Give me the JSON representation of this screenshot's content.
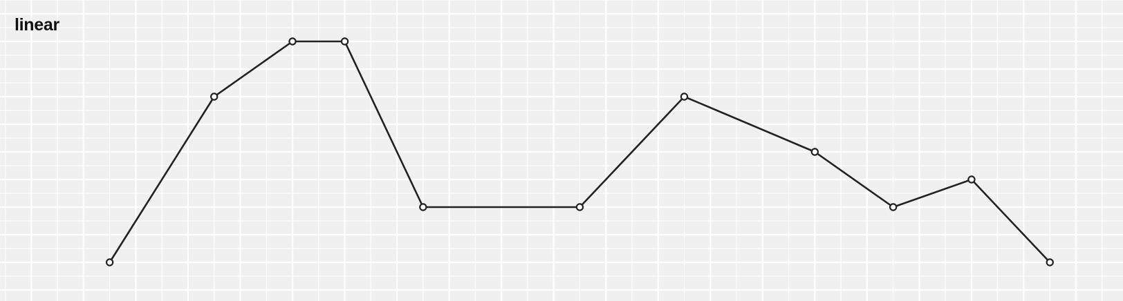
{
  "chart_data": {
    "type": "line",
    "title": "linear",
    "x": [
      1.5,
      3.5,
      5,
      6,
      7.5,
      10.5,
      12.5,
      15,
      16.5,
      18,
      19.5
    ],
    "series": [
      {
        "values": [
          1,
          7,
          9,
          9,
          3,
          3,
          7,
          5,
          3,
          4,
          1
        ]
      }
    ],
    "xlim": [
      -0.6,
      20.9
    ],
    "ylim": [
      0,
      10
    ],
    "grid": true,
    "colors": {
      "background": "#f0f0f0",
      "grid": "#ffffff",
      "line": "#222222",
      "marker_fill": "#ffffff"
    }
  }
}
